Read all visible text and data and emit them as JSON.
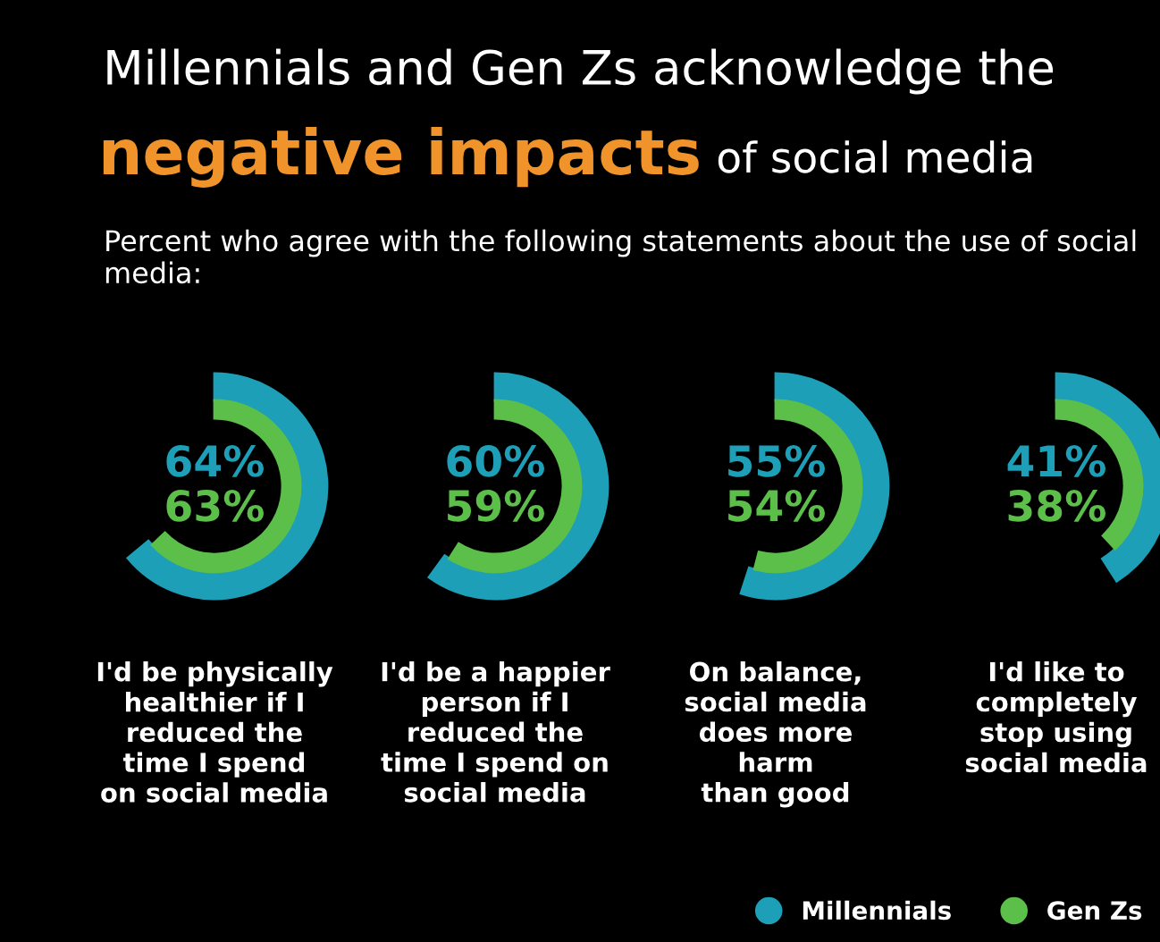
{
  "chart_data": {
    "type": "other",
    "title": "Millennials and Gen Zs acknowledge the negative impacts of social media",
    "subtitle": "Percent who agree with the following statements about the use of social media:",
    "categories": [
      "I'd be physically\nhealthier if I\nreduced the\ntime I spend\non social media",
      "I'd be a happier\nperson if I\nreduced the\ntime I spend on\nsocial media",
      "On balance,\nsocial media\ndoes more\nharm\nthan good",
      "I'd like to\ncompletely\nstop using\nsocial media"
    ],
    "series": [
      {
        "name": "Millennials",
        "color": "#1e9fb8",
        "values": [
          64,
          60,
          55,
          41
        ],
        "value_labels": [
          "64%",
          "60%",
          "55%",
          "41%"
        ]
      },
      {
        "name": "Gen Zs",
        "color": "#5cbf4a",
        "values": [
          63,
          59,
          54,
          38
        ],
        "value_labels": [
          "63%",
          "59%",
          "54%",
          "38%"
        ]
      }
    ],
    "legend": "bottom right"
  }
}
